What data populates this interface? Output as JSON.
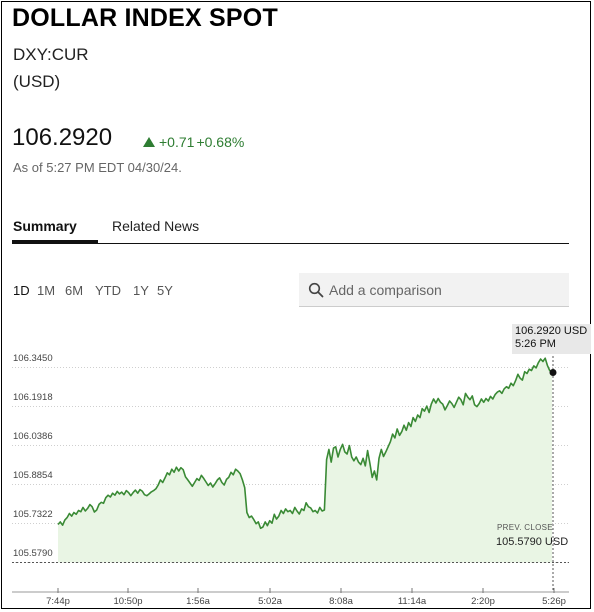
{
  "header": {
    "title": "DOLLAR INDEX SPOT",
    "ticker": "DXY:CUR",
    "currency": "(USD)"
  },
  "quote": {
    "price": "106.2920",
    "change": "+0.71",
    "change_pct": "+0.68%",
    "as_of": "As of 5:27 PM EDT 04/30/24."
  },
  "tabs": [
    {
      "label": "Summary",
      "active": true
    },
    {
      "label": "Related News",
      "active": false
    }
  ],
  "periods": [
    {
      "label": "1D",
      "active": true
    },
    {
      "label": "1M",
      "active": false
    },
    {
      "label": "6M",
      "active": false
    },
    {
      "label": "YTD",
      "active": false
    },
    {
      "label": "1Y",
      "active": false
    },
    {
      "label": "5Y",
      "active": false
    }
  ],
  "comparison": {
    "placeholder": "Add a comparison",
    "icon": "search-icon"
  },
  "colors": {
    "up": "#2e7d32",
    "line": "#3a8a35",
    "fill": "#e9f5e4"
  },
  "chart_data": {
    "type": "line",
    "title": "",
    "xlabel": "",
    "ylabel": "",
    "ylim": [
      105.5,
      106.42
    ],
    "y_ticks": [
      "106.3450",
      "106.1918",
      "106.0386",
      "105.8854",
      "105.7322",
      "105.5790"
    ],
    "x_ticks": [
      "7:44p",
      "10:50p",
      "1:56a",
      "5:02a",
      "8:08a",
      "11:14a",
      "2:20p",
      "5:26p"
    ],
    "grid": true,
    "last": {
      "price_label": "106.2920 USD",
      "time_label": "5:26 PM",
      "value": 106.292
    },
    "prev_close": {
      "label": "PREV. CLOSE",
      "value_label": "105.5790 USD",
      "value": 105.579
    },
    "series": [
      {
        "values": [
          105.695,
          105.705,
          105.692,
          105.712,
          105.722,
          105.738,
          105.728,
          105.742,
          105.735,
          105.75,
          105.745,
          105.762,
          105.748,
          105.758,
          105.773,
          105.765,
          105.744,
          105.752,
          105.774,
          105.782,
          105.778,
          105.8,
          105.81,
          105.803,
          105.818,
          105.81,
          105.825,
          105.815,
          105.822,
          105.812,
          105.828,
          105.82,
          105.808,
          105.82,
          105.83,
          105.818,
          105.832,
          105.826,
          105.812,
          105.808,
          105.815,
          105.823,
          105.828,
          105.835,
          105.85,
          105.87,
          105.86,
          105.878,
          105.898,
          105.89,
          105.912,
          105.9,
          105.92,
          105.905,
          105.918,
          105.91,
          105.882,
          105.87,
          105.858,
          105.845,
          105.86,
          105.875,
          105.868,
          105.888,
          105.876,
          105.862,
          105.848,
          105.858,
          105.842,
          105.855,
          105.87,
          105.878,
          105.86,
          105.85,
          105.872,
          105.88,
          105.9,
          105.89,
          105.912,
          105.905,
          105.895,
          105.87,
          105.84,
          105.742,
          105.722,
          105.728,
          105.714,
          105.698,
          105.705,
          105.68,
          105.685,
          105.705,
          105.69,
          105.71,
          105.7,
          105.735,
          105.716,
          105.728,
          105.75,
          105.738,
          105.756,
          105.745,
          105.75,
          105.738,
          105.762,
          105.748,
          105.736,
          105.756,
          105.75,
          105.78,
          105.765,
          105.76,
          105.745,
          105.75,
          105.74,
          105.762,
          105.748,
          105.752,
          105.95,
          105.99,
          105.94,
          105.995,
          106.0,
          105.96,
          105.99,
          106.01,
          105.98,
          105.972,
          106.005,
          105.96,
          105.945,
          105.96,
          105.94,
          105.93,
          105.955,
          105.925,
          105.985,
          105.935,
          105.88,
          105.905,
          105.87,
          105.955,
          105.99,
          105.962,
          105.98,
          106.0,
          106.02,
          106.05,
          106.035,
          106.07,
          106.045,
          106.06,
          106.085,
          106.065,
          106.095,
          106.08,
          106.115,
          106.1,
          106.125,
          106.115,
          106.15,
          106.14,
          106.16,
          106.135,
          106.168,
          106.188,
          106.172,
          106.19,
          106.175,
          106.168,
          106.145,
          106.162,
          106.18,
          106.17,
          106.155,
          106.175,
          106.195,
          106.185,
          106.165,
          106.21,
          106.195,
          106.185,
          106.2,
          106.165,
          106.158,
          106.17,
          106.188,
          106.175,
          106.19,
          106.18,
          106.198,
          106.188,
          106.205,
          106.215,
          106.22,
          106.21,
          106.228,
          106.236,
          106.23,
          106.25,
          106.24,
          106.26,
          106.285,
          106.27,
          106.262,
          106.295,
          106.288,
          106.305,
          106.3,
          106.318,
          106.31,
          106.33,
          106.345,
          106.335,
          106.348,
          106.32,
          106.3,
          106.292
        ]
      }
    ]
  }
}
